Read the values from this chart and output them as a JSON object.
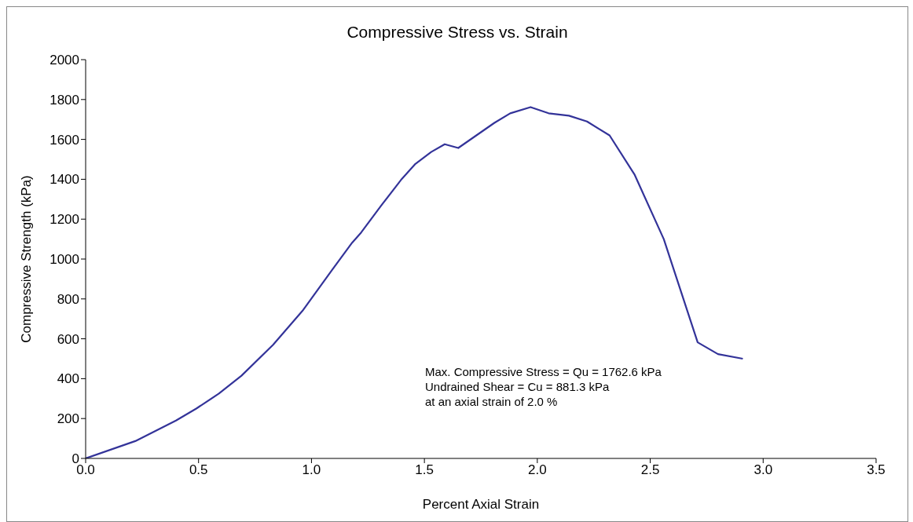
{
  "chart_data": {
    "type": "line",
    "title": "Compressive Stress vs. Strain",
    "xlabel": "Percent Axial  Strain",
    "ylabel": "Compressive Strength  (kPa)",
    "x": [
      0,
      0.22,
      0.4,
      0.49,
      0.59,
      0.69,
      0.83,
      0.96,
      1.09,
      1.18,
      1.22,
      1.31,
      1.4,
      1.46,
      1.53,
      1.59,
      1.65,
      1.81,
      1.88,
      1.97,
      2.05,
      2.14,
      2.22,
      2.32,
      2.43,
      2.56,
      2.71,
      2.8,
      2.91
    ],
    "series": [
      {
        "color": "#333399",
        "values": [
          0,
          87,
          190,
          250,
          325,
          415,
          570,
          740,
          943,
          1082,
          1133,
          1270,
          1402,
          1477,
          1537,
          1576,
          1557,
          1683,
          1731,
          1762,
          1731,
          1719,
          1690,
          1620,
          1425,
          1100,
          582,
          523,
          500
        ]
      }
    ],
    "xlim": [
      0,
      3.5
    ],
    "xticks": [
      {
        "value": 0,
        "label": "0.0"
      },
      {
        "value": 0.5,
        "label": "0.5"
      },
      {
        "value": 1,
        "label": "1.0"
      },
      {
        "value": 1.5,
        "label": "1.5"
      },
      {
        "value": 2,
        "label": "2.0"
      },
      {
        "value": 2.5,
        "label": "2.5"
      },
      {
        "value": 3,
        "label": "3.0"
      },
      {
        "value": 3.5,
        "label": "3.5"
      }
    ],
    "ylim": [
      0,
      2000
    ],
    "yticks": [
      0,
      200,
      400,
      600,
      800,
      1000,
      1200,
      1400,
      1600,
      1800,
      2000
    ],
    "annotations": [
      "Max. Compressive Stress = Qu = 1762.6 kPa",
      "Undrained Shear = Cu = 881.3 kPa",
      "at an axial strain of 2.0 %"
    ],
    "marker": "none",
    "line_style": "solid",
    "grid": false,
    "legend": false
  }
}
